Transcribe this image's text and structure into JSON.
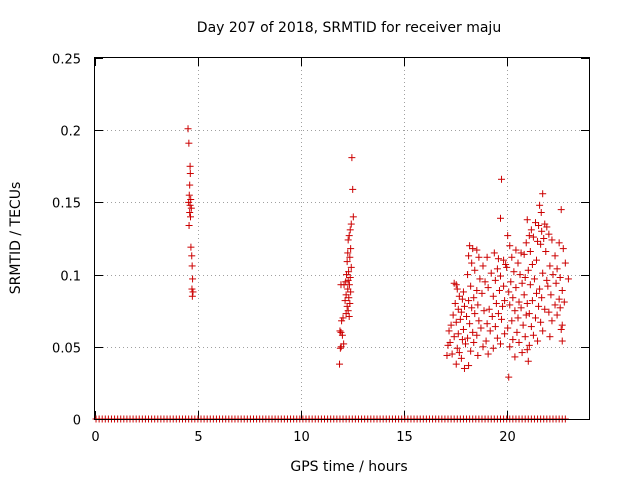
{
  "chart_data": {
    "type": "scatter",
    "title": "Day 207 of 2018, SRMTID for receiver maju",
    "xlabel": "GPS time / hours",
    "ylabel": "SRMTID / TECUs",
    "xlim": [
      0,
      24
    ],
    "ylim": [
      0,
      0.25
    ],
    "xticks": [
      0,
      5,
      10,
      15,
      20
    ],
    "yticks": [
      0,
      0.05,
      0.1,
      0.15,
      0.2,
      0.25
    ],
    "xtick_labels": [
      "0",
      "5",
      "10",
      "15",
      "20"
    ],
    "ytick_labels": [
      "0",
      "0.05",
      "0.1",
      "0.15",
      "0.2",
      "0.25"
    ],
    "grid": true,
    "marker": "+",
    "color": "#cc0000",
    "series": [
      {
        "name": "SRMTID",
        "points": [
          [
            4.52,
            0.201
          ],
          [
            4.56,
            0.191
          ],
          [
            4.62,
            0.175
          ],
          [
            4.63,
            0.17
          ],
          [
            4.6,
            0.162
          ],
          [
            4.58,
            0.155
          ],
          [
            4.65,
            0.152
          ],
          [
            4.55,
            0.15
          ],
          [
            4.62,
            0.148
          ],
          [
            4.68,
            0.146
          ],
          [
            4.6,
            0.143
          ],
          [
            4.64,
            0.14
          ],
          [
            4.57,
            0.134
          ],
          [
            4.66,
            0.119
          ],
          [
            4.7,
            0.113
          ],
          [
            4.72,
            0.106
          ],
          [
            4.74,
            0.097
          ],
          [
            4.71,
            0.09
          ],
          [
            4.76,
            0.088
          ],
          [
            4.73,
            0.085
          ],
          [
            12.48,
            0.181
          ],
          [
            12.52,
            0.159
          ],
          [
            12.55,
            0.14
          ],
          [
            12.45,
            0.135
          ],
          [
            12.4,
            0.131
          ],
          [
            12.35,
            0.127
          ],
          [
            12.3,
            0.124
          ],
          [
            12.42,
            0.118
          ],
          [
            12.28,
            0.115
          ],
          [
            12.38,
            0.112
          ],
          [
            12.25,
            0.109
          ],
          [
            12.45,
            0.105
          ],
          [
            12.32,
            0.102
          ],
          [
            12.22,
            0.1
          ],
          [
            12.4,
            0.098
          ],
          [
            12.3,
            0.096
          ],
          [
            12.18,
            0.095
          ],
          [
            12.36,
            0.093
          ],
          [
            12.1,
            0.093
          ],
          [
            11.95,
            0.093
          ],
          [
            12.28,
            0.09
          ],
          [
            12.42,
            0.088
          ],
          [
            12.2,
            0.086
          ],
          [
            12.33,
            0.084
          ],
          [
            12.15,
            0.082
          ],
          [
            12.38,
            0.08
          ],
          [
            12.25,
            0.078
          ],
          [
            12.3,
            0.075
          ],
          [
            12.2,
            0.073
          ],
          [
            12.35,
            0.071
          ],
          [
            12.05,
            0.07
          ],
          [
            11.98,
            0.068
          ],
          [
            11.9,
            0.061
          ],
          [
            11.95,
            0.06
          ],
          [
            12.02,
            0.058
          ],
          [
            12.08,
            0.052
          ],
          [
            11.96,
            0.05
          ],
          [
            11.92,
            0.049
          ],
          [
            11.88,
            0.038
          ],
          [
            19.75,
            0.166
          ],
          [
            21.75,
            0.156
          ],
          [
            21.6,
            0.148
          ],
          [
            21.68,
            0.143
          ],
          [
            22.65,
            0.145
          ],
          [
            19.7,
            0.139
          ],
          [
            21.0,
            0.138
          ],
          [
            21.4,
            0.136
          ],
          [
            21.55,
            0.134
          ],
          [
            21.85,
            0.135
          ],
          [
            21.95,
            0.133
          ],
          [
            21.2,
            0.131
          ],
          [
            21.7,
            0.13
          ],
          [
            22.05,
            0.128
          ],
          [
            21.1,
            0.127
          ],
          [
            20.05,
            0.127
          ],
          [
            21.3,
            0.126
          ],
          [
            21.8,
            0.125
          ],
          [
            22.2,
            0.124
          ],
          [
            21.5,
            0.123
          ],
          [
            20.95,
            0.122
          ],
          [
            21.65,
            0.121
          ],
          [
            22.55,
            0.122
          ],
          [
            22.75,
            0.118
          ],
          [
            20.15,
            0.12
          ],
          [
            18.2,
            0.12
          ],
          [
            18.35,
            0.118
          ],
          [
            18.55,
            0.117
          ],
          [
            20.45,
            0.117
          ],
          [
            21.15,
            0.116
          ],
          [
            21.9,
            0.116
          ],
          [
            20.7,
            0.115
          ],
          [
            19.4,
            0.115
          ],
          [
            18.15,
            0.113
          ],
          [
            18.65,
            0.112
          ],
          [
            20.85,
            0.114
          ],
          [
            22.35,
            0.113
          ],
          [
            19.05,
            0.112
          ],
          [
            20.25,
            0.112
          ],
          [
            19.6,
            0.111
          ],
          [
            21.45,
            0.11
          ],
          [
            19.85,
            0.11
          ],
          [
            22.85,
            0.108
          ],
          [
            18.3,
            0.108
          ],
          [
            20.55,
            0.108
          ],
          [
            21.25,
            0.107
          ],
          [
            19.95,
            0.107
          ],
          [
            22.1,
            0.106
          ],
          [
            18.85,
            0.106
          ],
          [
            20.0,
            0.105
          ],
          [
            19.55,
            0.104
          ],
          [
            22.45,
            0.104
          ],
          [
            21.05,
            0.103
          ],
          [
            18.45,
            0.103
          ],
          [
            20.35,
            0.102
          ],
          [
            19.25,
            0.101
          ],
          [
            21.75,
            0.101
          ],
          [
            20.65,
            0.1
          ],
          [
            22.25,
            0.1
          ],
          [
            18.1,
            0.1
          ],
          [
            19.7,
            0.099
          ],
          [
            22.6,
            0.098
          ],
          [
            20.9,
            0.098
          ],
          [
            18.7,
            0.097
          ],
          [
            21.35,
            0.097
          ],
          [
            23.0,
            0.097
          ],
          [
            19.45,
            0.096
          ],
          [
            21.95,
            0.096
          ],
          [
            20.2,
            0.095
          ],
          [
            18.95,
            0.095
          ],
          [
            22.4,
            0.094
          ],
          [
            17.45,
            0.094
          ],
          [
            20.75,
            0.094
          ],
          [
            17.55,
            0.093
          ],
          [
            21.15,
            0.093
          ],
          [
            18.25,
            0.092
          ],
          [
            19.85,
            0.092
          ],
          [
            22.0,
            0.092
          ],
          [
            19.1,
            0.091
          ],
          [
            20.45,
            0.091
          ],
          [
            17.6,
            0.09
          ],
          [
            21.6,
            0.09
          ],
          [
            18.55,
            0.089
          ],
          [
            22.7,
            0.089
          ],
          [
            19.65,
            0.089
          ],
          [
            20.1,
            0.088
          ],
          [
            17.9,
            0.088
          ],
          [
            21.45,
            0.087
          ],
          [
            18.8,
            0.087
          ],
          [
            20.85,
            0.086
          ],
          [
            22.15,
            0.086
          ],
          [
            17.7,
            0.085
          ],
          [
            19.35,
            0.085
          ],
          [
            21.7,
            0.084
          ],
          [
            18.4,
            0.084
          ],
          [
            20.3,
            0.084
          ],
          [
            22.55,
            0.083
          ],
          [
            17.85,
            0.083
          ],
          [
            19.9,
            0.082
          ],
          [
            21.25,
            0.082
          ],
          [
            18.15,
            0.082
          ],
          [
            20.6,
            0.081
          ],
          [
            22.8,
            0.081
          ],
          [
            17.5,
            0.08
          ],
          [
            19.5,
            0.08
          ],
          [
            21.0,
            0.08
          ],
          [
            18.6,
            0.079
          ],
          [
            22.35,
            0.079
          ],
          [
            20.15,
            0.079
          ],
          [
            17.95,
            0.078
          ],
          [
            19.8,
            0.078
          ],
          [
            21.55,
            0.078
          ],
          [
            18.3,
            0.077
          ],
          [
            20.7,
            0.077
          ],
          [
            22.6,
            0.077
          ],
          [
            17.65,
            0.076
          ],
          [
            19.15,
            0.076
          ],
          [
            21.85,
            0.076
          ],
          [
            18.9,
            0.075
          ],
          [
            20.4,
            0.075
          ],
          [
            17.8,
            0.074
          ],
          [
            22.05,
            0.074
          ],
          [
            19.6,
            0.073
          ],
          [
            21.1,
            0.073
          ],
          [
            18.45,
            0.073
          ],
          [
            20.95,
            0.072
          ],
          [
            17.4,
            0.072
          ],
          [
            22.45,
            0.072
          ],
          [
            19.3,
            0.071
          ],
          [
            18.05,
            0.071
          ],
          [
            20.55,
            0.07
          ],
          [
            21.4,
            0.07
          ],
          [
            17.75,
            0.069
          ],
          [
            19.75,
            0.069
          ],
          [
            22.2,
            0.068
          ],
          [
            18.65,
            0.068
          ],
          [
            20.25,
            0.068
          ],
          [
            17.55,
            0.067
          ],
          [
            21.65,
            0.067
          ],
          [
            19.05,
            0.066
          ],
          [
            18.2,
            0.066
          ],
          [
            20.8,
            0.065
          ],
          [
            22.7,
            0.065
          ],
          [
            17.3,
            0.065
          ],
          [
            19.45,
            0.064
          ],
          [
            21.2,
            0.064
          ],
          [
            18.75,
            0.063
          ],
          [
            20.05,
            0.063
          ],
          [
            17.9,
            0.062
          ],
          [
            22.65,
            0.062
          ],
          [
            19.2,
            0.061
          ],
          [
            21.75,
            0.061
          ],
          [
            17.2,
            0.061
          ],
          [
            18.35,
            0.06
          ],
          [
            20.5,
            0.06
          ],
          [
            17.65,
            0.059
          ],
          [
            19.9,
            0.059
          ],
          [
            21.3,
            0.058
          ],
          [
            18.55,
            0.058
          ],
          [
            20.9,
            0.057
          ],
          [
            17.45,
            0.057
          ],
          [
            22.1,
            0.057
          ],
          [
            19.55,
            0.056
          ],
          [
            18.1,
            0.056
          ],
          [
            20.3,
            0.055
          ],
          [
            17.85,
            0.055
          ],
          [
            21.5,
            0.054
          ],
          [
            22.7,
            0.054
          ],
          [
            19.0,
            0.054
          ],
          [
            18.4,
            0.053
          ],
          [
            17.25,
            0.053
          ],
          [
            20.6,
            0.053
          ],
          [
            19.7,
            0.052
          ],
          [
            18.0,
            0.052
          ],
          [
            17.15,
            0.051
          ],
          [
            21.1,
            0.051
          ],
          [
            18.85,
            0.05
          ],
          [
            20.15,
            0.05
          ],
          [
            17.6,
            0.049
          ],
          [
            19.35,
            0.049
          ],
          [
            21.0,
            0.048
          ],
          [
            18.25,
            0.047
          ],
          [
            17.7,
            0.046
          ],
          [
            20.75,
            0.046
          ],
          [
            17.35,
            0.045
          ],
          [
            19.1,
            0.045
          ],
          [
            18.6,
            0.044
          ],
          [
            17.1,
            0.044
          ],
          [
            20.4,
            0.043
          ],
          [
            17.8,
            0.042
          ],
          [
            21.05,
            0.04
          ],
          [
            17.55,
            0.038
          ],
          [
            18.15,
            0.037
          ],
          [
            17.95,
            0.035
          ],
          [
            20.1,
            0.029
          ]
        ],
        "zero_points_x": [
          0.05,
          0.2,
          0.35,
          0.5,
          0.65,
          0.8,
          0.95,
          1.1,
          1.25,
          1.4,
          1.55,
          1.7,
          1.85,
          2.0,
          2.15,
          2.3,
          2.45,
          2.6,
          2.75,
          2.9,
          3.05,
          3.2,
          3.35,
          3.5,
          3.65,
          3.8,
          3.95,
          4.1,
          4.25,
          4.4,
          4.55,
          4.7,
          4.85,
          5.0,
          5.15,
          5.3,
          5.45,
          5.6,
          5.75,
          5.9,
          6.05,
          6.2,
          6.35,
          6.5,
          6.65,
          6.8,
          6.95,
          7.1,
          7.25,
          7.4,
          7.55,
          7.7,
          7.85,
          8.0,
          8.15,
          8.3,
          8.45,
          8.6,
          8.75,
          8.9,
          9.05,
          9.2,
          9.35,
          9.5,
          9.65,
          9.8,
          9.95,
          10.1,
          10.25,
          10.4,
          10.55,
          10.7,
          10.85,
          11.0,
          11.15,
          11.3,
          11.45,
          11.6,
          11.75,
          11.9,
          12.05,
          12.2,
          12.35,
          12.5,
          12.65,
          12.8,
          12.95,
          13.1,
          13.25,
          13.4,
          13.55,
          13.7,
          13.85,
          14.0,
          14.15,
          14.3,
          14.45,
          14.6,
          14.75,
          14.9,
          15.05,
          15.2,
          15.35,
          15.5,
          15.65,
          15.8,
          15.95,
          16.1,
          16.25,
          16.4,
          16.55,
          16.7,
          16.85,
          17.0,
          17.15,
          17.3,
          17.45,
          17.6,
          17.75,
          17.9,
          18.05,
          18.2,
          18.35,
          18.5,
          18.65,
          18.8,
          18.95,
          19.1,
          19.25,
          19.4,
          19.55,
          19.7,
          19.85,
          20.0,
          20.15,
          20.3,
          20.45,
          20.6,
          20.75,
          20.9,
          21.05,
          21.2,
          21.35,
          21.5,
          21.65,
          21.8,
          21.95,
          22.1,
          22.25,
          22.4,
          22.55,
          22.7,
          22.85
        ]
      }
    ]
  }
}
